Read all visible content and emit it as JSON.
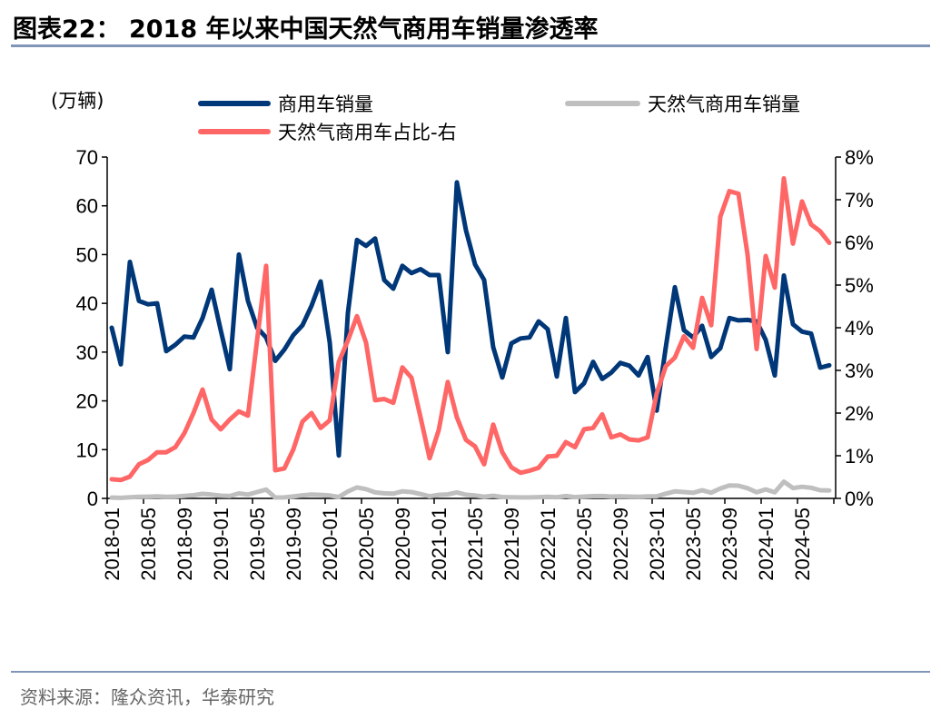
{
  "title": "图表22：  2018 年以来中国天然气商用车销量渗透率",
  "source": "资料来源：隆众资讯，华泰研究",
  "colors": {
    "commercial": "#003778",
    "ngv": "#BFBFBF",
    "share": "#FF6666",
    "rule": "#7f96b8"
  },
  "chart_data": {
    "type": "line",
    "left_unit": "(万辆)",
    "ylim_left": [
      0,
      70
    ],
    "yticks_left": [
      "0",
      "10",
      "20",
      "30",
      "40",
      "50",
      "60",
      "70"
    ],
    "ylim_right": [
      0,
      8
    ],
    "yticks_right": [
      "0%",
      "1%",
      "2%",
      "3%",
      "4%",
      "5%",
      "6%",
      "7%",
      "8%"
    ],
    "legend_position": "top",
    "x": [
      "2018-01",
      "2018-02",
      "2018-03",
      "2018-04",
      "2018-05",
      "2018-06",
      "2018-07",
      "2018-08",
      "2018-09",
      "2018-10",
      "2018-11",
      "2018-12",
      "2019-01",
      "2019-02",
      "2019-03",
      "2019-04",
      "2019-05",
      "2019-06",
      "2019-07",
      "2019-08",
      "2019-09",
      "2019-10",
      "2019-11",
      "2019-12",
      "2020-01",
      "2020-02",
      "2020-03",
      "2020-04",
      "2020-05",
      "2020-06",
      "2020-07",
      "2020-08",
      "2020-09",
      "2020-10",
      "2020-11",
      "2020-12",
      "2021-01",
      "2021-02",
      "2021-03",
      "2021-04",
      "2021-05",
      "2021-06",
      "2021-07",
      "2021-08",
      "2021-09",
      "2021-10",
      "2021-11",
      "2021-12",
      "2022-01",
      "2022-02",
      "2022-03",
      "2022-04",
      "2022-05",
      "2022-06",
      "2022-07",
      "2022-08",
      "2022-09",
      "2022-10",
      "2022-11",
      "2022-12",
      "2023-01",
      "2023-02",
      "2023-03",
      "2023-04",
      "2023-05",
      "2023-06",
      "2023-07",
      "2023-08",
      "2023-09",
      "2023-10",
      "2023-11",
      "2023-12",
      "2024-01",
      "2024-02",
      "2024-03",
      "2024-04",
      "2024-05",
      "2024-06",
      "2024-07",
      "2024-08"
    ],
    "xtick_labels": [
      "2018-01",
      "2018-05",
      "2018-09",
      "2019-01",
      "2019-05",
      "2019-09",
      "2020-01",
      "2020-05",
      "2020-09",
      "2021-01",
      "2021-05",
      "2021-09",
      "2022-01",
      "2022-05",
      "2022-09",
      "2023-01",
      "2023-05",
      "2023-09",
      "2024-01",
      "2024-05"
    ],
    "series": [
      {
        "name": "商用车销量",
        "axis": "left",
        "values": [
          35,
          27.5,
          48.5,
          40.5,
          39.8,
          40,
          30.2,
          31.5,
          33.2,
          33,
          37,
          42.8,
          34.5,
          26.5,
          50,
          40.5,
          35,
          33,
          28.2,
          30.5,
          33.5,
          35.5,
          39.5,
          44.5,
          32,
          8.8,
          38,
          53,
          51.8,
          53.3,
          44.8,
          43,
          47.7,
          46.2,
          47,
          45.8,
          45.8,
          30,
          64.8,
          55,
          48,
          44.8,
          31,
          24.8,
          31.8,
          32.8,
          33,
          36.3,
          34.7,
          25,
          37,
          21.8,
          23.6,
          28,
          24.5,
          25.8,
          27.8,
          27.2,
          25.2,
          29,
          18,
          31,
          43.3,
          34.5,
          33,
          35.4,
          29,
          30.8,
          37,
          36.5,
          36.6,
          36.3,
          32.5,
          25.2,
          45.7,
          35.7,
          34.2,
          33.8,
          26.8,
          27.3
        ]
      },
      {
        "name": "天然气商用车销量",
        "axis": "left",
        "values": [
          0.16,
          0.12,
          0.25,
          0.32,
          0.36,
          0.43,
          0.33,
          0.38,
          0.51,
          0.66,
          0.94,
          0.79,
          0.56,
          0.49,
          1.02,
          0.79,
          1.3,
          1.8,
          0.19,
          0.21,
          0.39,
          0.64,
          0.79,
          0.73,
          0.59,
          0.28,
          1.41,
          2.26,
          1.89,
          1.23,
          1.04,
          0.96,
          1.46,
          1.31,
          0.89,
          0.43,
          0.73,
          0.82,
          1.23,
          0.75,
          0.59,
          0.36,
          0.54,
          0.27,
          0.23,
          0.2,
          0.21,
          0.26,
          0.34,
          0.25,
          0.49,
          0.26,
          0.38,
          0.46,
          0.48,
          0.37,
          0.42,
          0.38,
          0.34,
          0.41,
          0.44,
          0.96,
          1.43,
          1.31,
          1.16,
          1.66,
          1.18,
          2.03,
          2.66,
          2.61,
          2.09,
          1.27,
          1.85,
          1.24,
          3.43,
          2.13,
          2.38,
          2.17,
          1.68,
          1.64
        ]
      },
      {
        "name": "天然气商用车占比-右",
        "axis": "right",
        "values": [
          0.45,
          0.43,
          0.51,
          0.8,
          0.9,
          1.08,
          1.08,
          1.2,
          1.53,
          2.0,
          2.55,
          1.85,
          1.62,
          1.85,
          2.04,
          1.94,
          3.7,
          5.45,
          0.66,
          0.7,
          1.15,
          1.8,
          2.0,
          1.65,
          1.83,
          3.2,
          3.7,
          4.27,
          3.65,
          2.3,
          2.33,
          2.24,
          3.07,
          2.83,
          1.9,
          0.94,
          1.6,
          2.73,
          1.9,
          1.37,
          1.22,
          0.8,
          1.73,
          1.08,
          0.73,
          0.6,
          0.65,
          0.72,
          0.98,
          1.0,
          1.32,
          1.2,
          1.62,
          1.65,
          1.97,
          1.43,
          1.5,
          1.38,
          1.36,
          1.43,
          2.46,
          3.1,
          3.3,
          3.8,
          3.53,
          4.7,
          4.06,
          6.6,
          7.2,
          7.14,
          5.72,
          3.5,
          5.68,
          4.94,
          7.5,
          5.97,
          6.96,
          6.42,
          6.26,
          5.99
        ]
      }
    ]
  }
}
